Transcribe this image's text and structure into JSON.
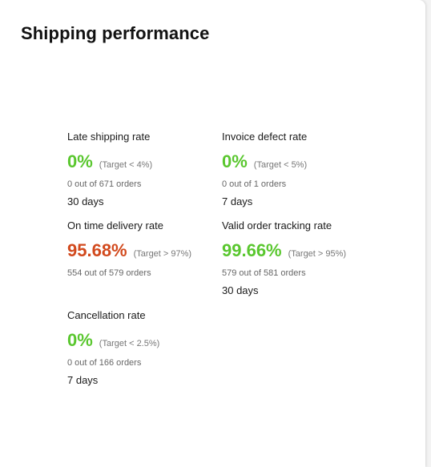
{
  "card": {
    "title": "Shipping performance"
  },
  "colors": {
    "good": "#5ac72f",
    "bad": "#d24a1e"
  },
  "metrics": [
    {
      "label": "Late shipping rate",
      "value": "0%",
      "target": "(Target < 4%)",
      "count": "0 out of 671 orders",
      "window": "30 days",
      "status": "good"
    },
    {
      "label": "Invoice defect rate",
      "value": "0%",
      "target": "(Target < 5%)",
      "count": "0 out of 1 orders",
      "window": "7 days",
      "status": "good"
    },
    {
      "label": "On time delivery rate",
      "value": "95.68%",
      "target": "(Target > 97%)",
      "count": "554 out of 579 orders",
      "window": "",
      "status": "bad"
    },
    {
      "label": "Valid order tracking rate",
      "value": "99.66%",
      "target": "(Target > 95%)",
      "count": "579 out of 581 orders",
      "window": "30 days",
      "status": "good"
    },
    {
      "label": "Cancellation rate",
      "value": "0%",
      "target": "(Target < 2.5%)",
      "count": "0 out of 166 orders",
      "window": "7 days",
      "status": "good"
    }
  ]
}
